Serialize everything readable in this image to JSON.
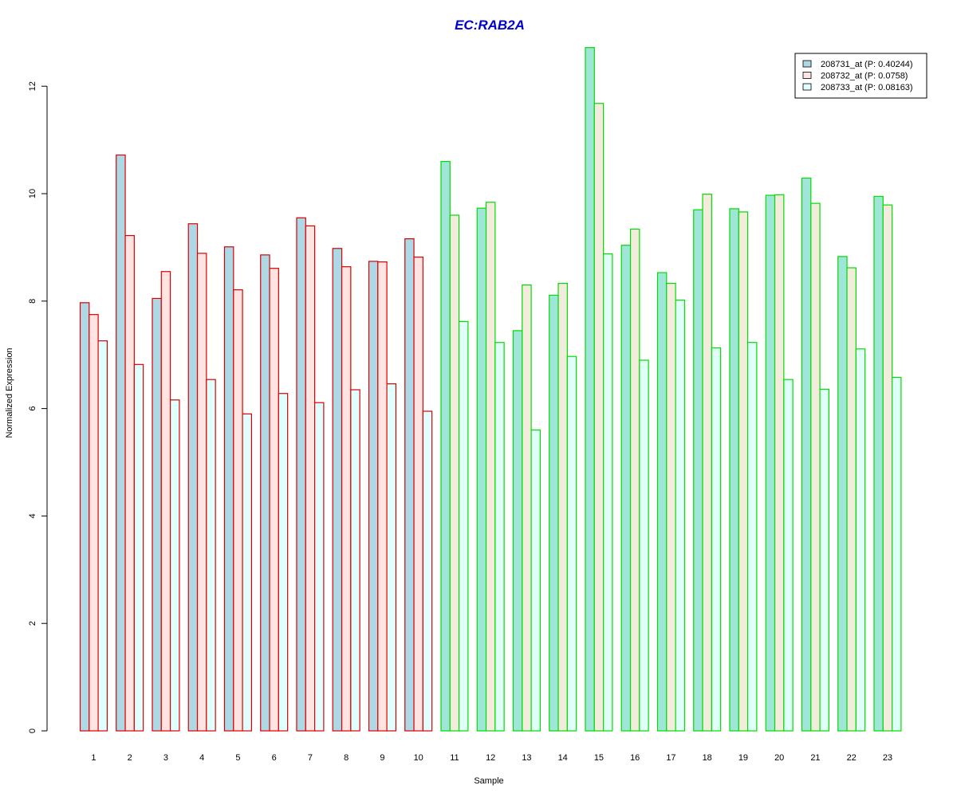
{
  "chart_data": {
    "type": "bar",
    "title": "EC:RAB2A",
    "xlabel": "Sample",
    "ylabel": "Normalized Expression",
    "ylim": [
      0,
      12.8
    ],
    "yticks": [
      0,
      2,
      4,
      6,
      8,
      10,
      12
    ],
    "categories": [
      "1",
      "2",
      "3",
      "4",
      "5",
      "6",
      "7",
      "8",
      "9",
      "10",
      "11",
      "12",
      "13",
      "14",
      "15",
      "16",
      "17",
      "18",
      "19",
      "20",
      "21",
      "22",
      "23"
    ],
    "group_colors": {
      "group_a": {
        "samples": [
          1,
          2,
          3,
          4,
          5,
          6,
          7,
          8,
          9,
          10
        ],
        "border": "#dd0000"
      },
      "group_b": {
        "samples": [
          11,
          12,
          13,
          14,
          15,
          16,
          17,
          18,
          19,
          20,
          21,
          22,
          23
        ],
        "border": "#00dd00"
      }
    },
    "series": [
      {
        "name": "208731_at (P: 0.40244)",
        "fill_group_a": "#add8e6",
        "fill_group_b": "#a0e6d8",
        "values": [
          7.97,
          10.72,
          8.05,
          9.44,
          9.01,
          8.86,
          9.55,
          8.98,
          8.74,
          9.16,
          10.6,
          9.73,
          7.45,
          8.11,
          12.72,
          9.04,
          8.53,
          9.7,
          9.72,
          9.97,
          10.29,
          8.83,
          9.95
        ]
      },
      {
        "name": "208732_at (P: 0.0758)",
        "fill_group_a": "#ffe4e1",
        "fill_group_b": "#f3ebdc",
        "values": [
          7.75,
          9.22,
          8.55,
          8.89,
          8.21,
          8.61,
          9.4,
          8.64,
          8.73,
          8.82,
          9.6,
          9.84,
          8.3,
          8.33,
          11.68,
          9.34,
          8.33,
          9.99,
          9.66,
          9.98,
          9.82,
          8.62,
          9.79
        ]
      },
      {
        "name": "208733_at (P: 0.08163)",
        "fill_group_a": "#e0ffff",
        "fill_group_b": "#e0fff8",
        "values": [
          7.26,
          6.82,
          6.16,
          6.54,
          5.9,
          6.28,
          6.11,
          6.35,
          6.46,
          5.95,
          7.62,
          7.23,
          5.6,
          6.97,
          8.88,
          6.9,
          8.02,
          7.13,
          7.23,
          6.54,
          6.36,
          7.11,
          6.58
        ]
      }
    ],
    "legend": {
      "position": "top-right",
      "swatch_colors": [
        "#add8e6",
        "#ffe4e1",
        "#e0ffff"
      ]
    },
    "title_color": "#0000cc",
    "grid": false
  }
}
